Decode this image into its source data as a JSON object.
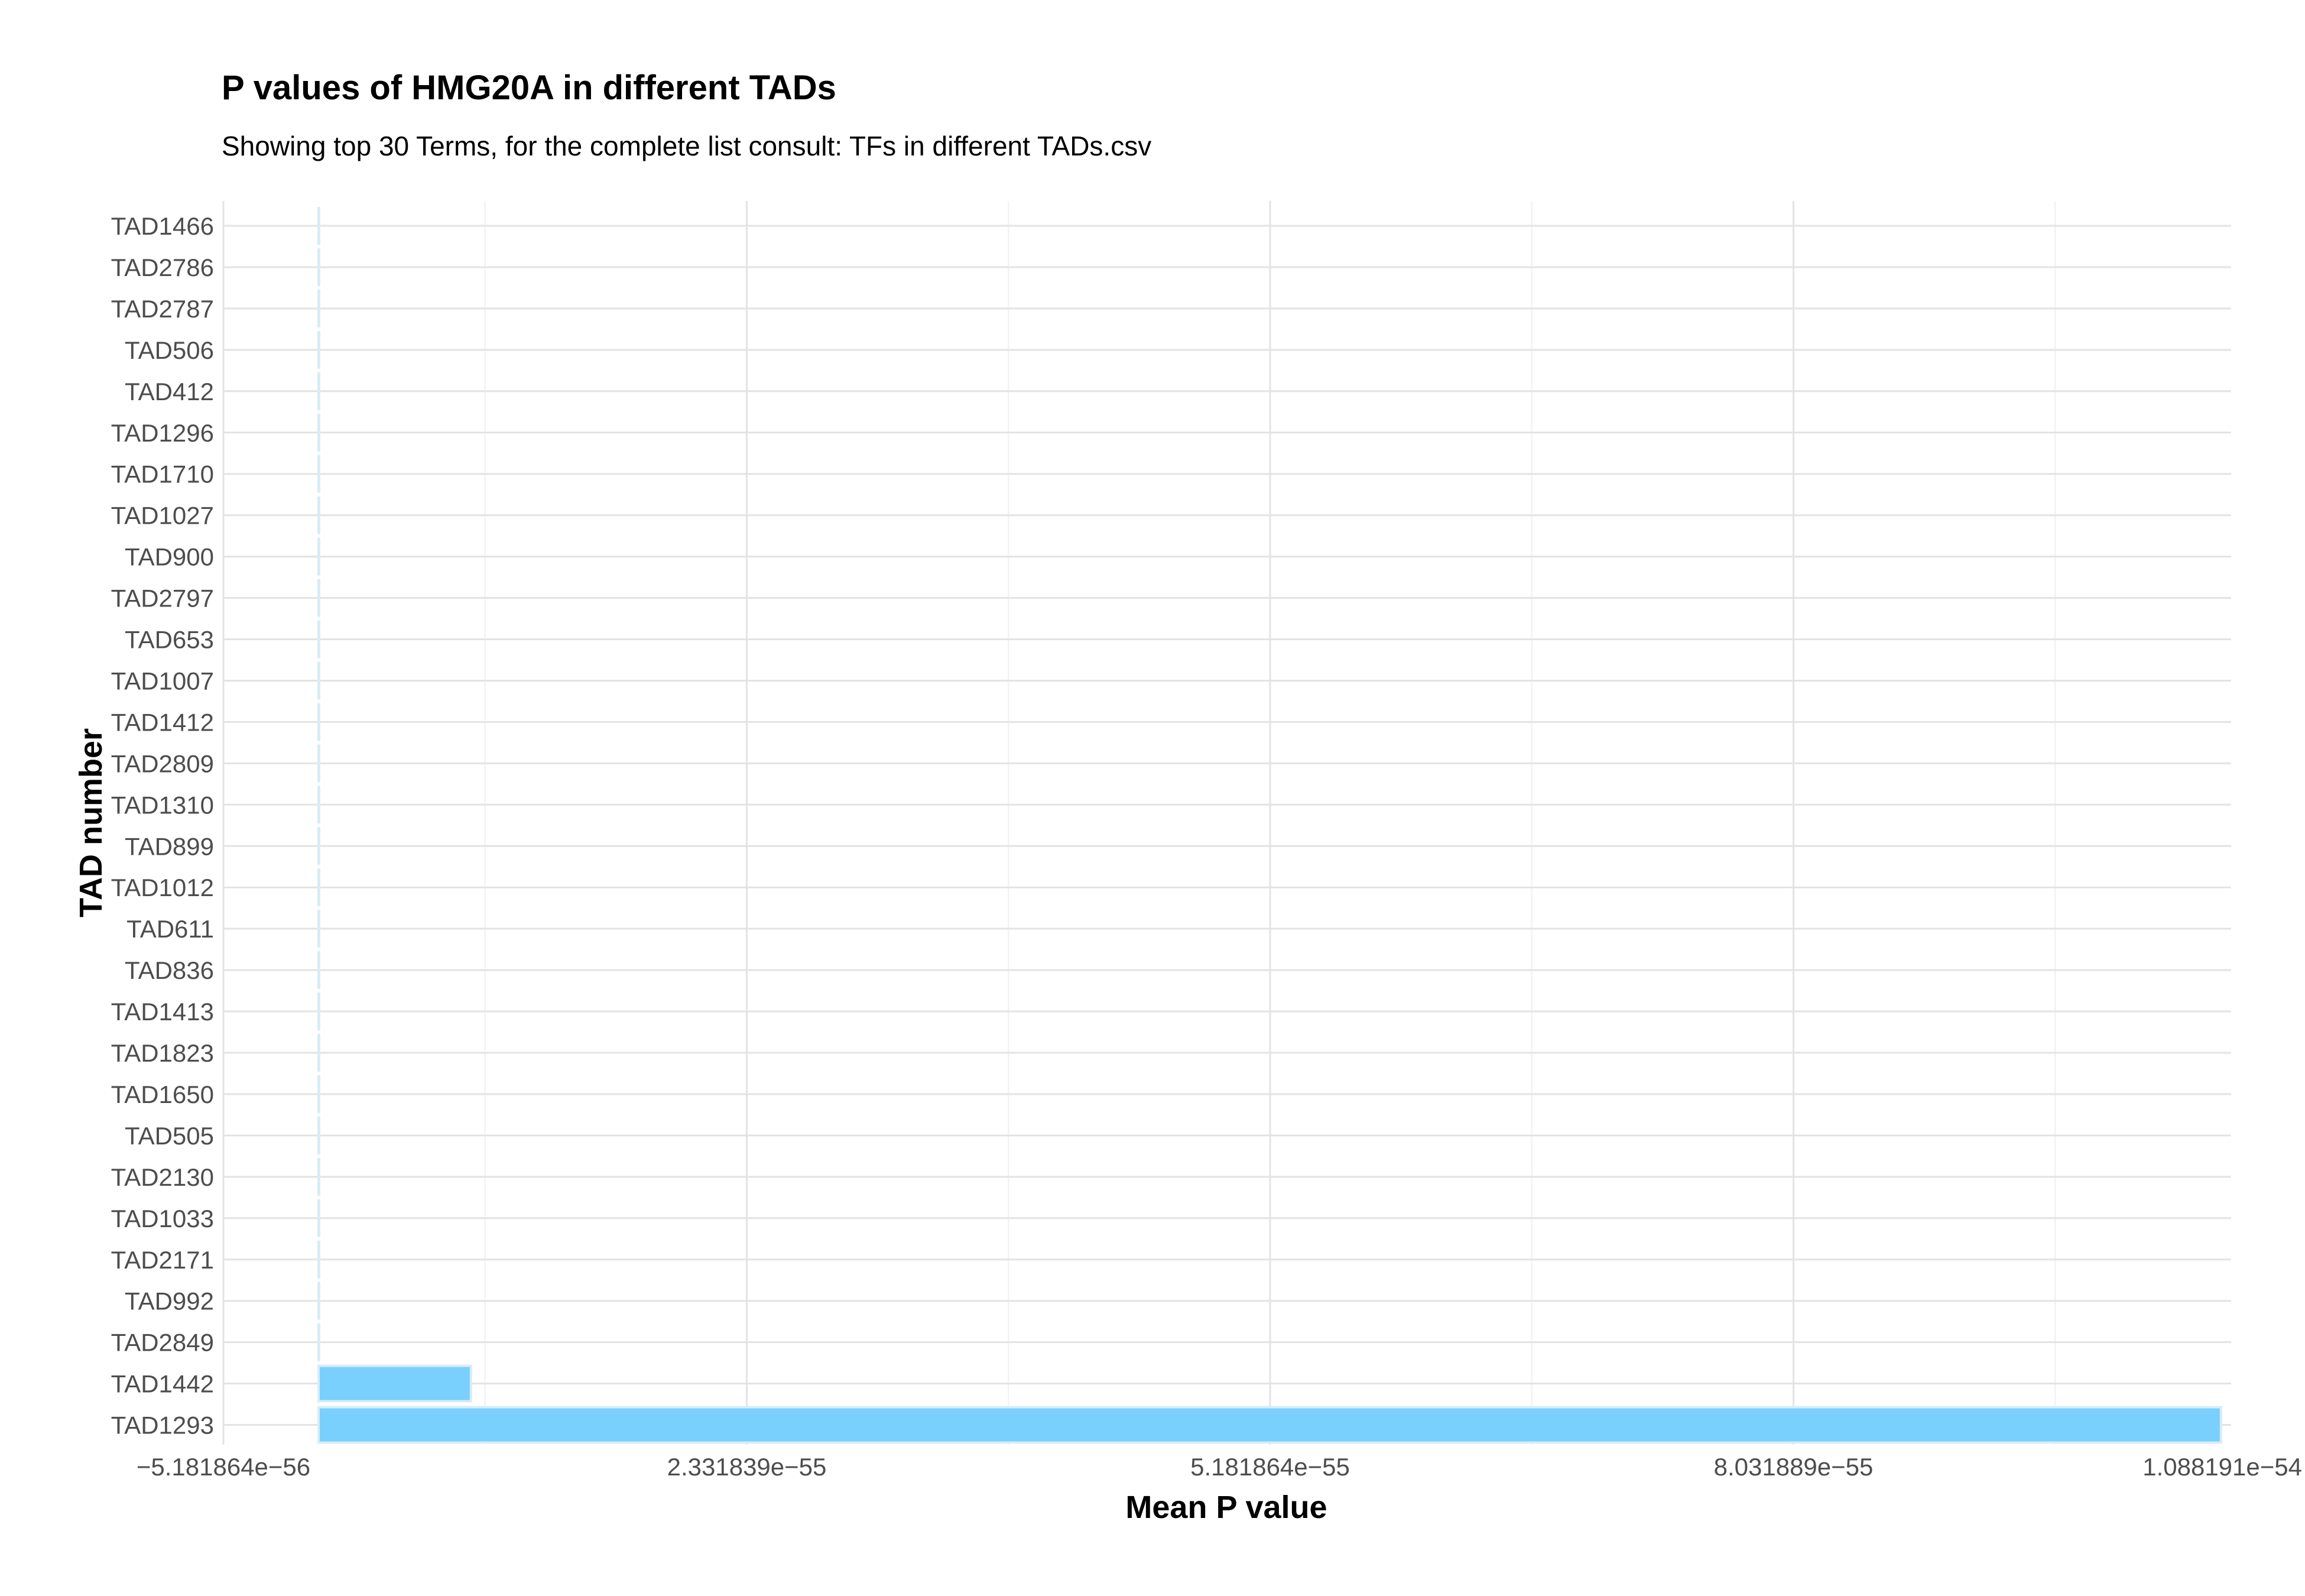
{
  "chart_data": {
    "type": "bar",
    "orientation": "horizontal",
    "title": "P values of HMG20A in different TADs",
    "subtitle": "Showing top 30 Terms, for the complete list consult: TFs in different TADs.csv",
    "xlabel": "Mean P value",
    "ylabel": "TAD number",
    "xlim": [
      -5.181864e-56,
      1.088191e-54
    ],
    "x_tick_values": [
      -5.181864e-56,
      2.331839e-55,
      5.181864e-55,
      8.031889e-55,
      1.088191e-54
    ],
    "x_tick_labels": [
      "−5.181864e−56",
      "2.331839e−55",
      "5.181864e−55",
      "8.031889e−55",
      "1.088191e−54"
    ],
    "categories": [
      "TAD1466",
      "TAD2786",
      "TAD2787",
      "TAD506",
      "TAD412",
      "TAD1296",
      "TAD1710",
      "TAD1027",
      "TAD900",
      "TAD2797",
      "TAD653",
      "TAD1007",
      "TAD1412",
      "TAD2809",
      "TAD1310",
      "TAD899",
      "TAD1012",
      "TAD611",
      "TAD836",
      "TAD1413",
      "TAD1823",
      "TAD1650",
      "TAD505",
      "TAD2130",
      "TAD1033",
      "TAD2171",
      "TAD992",
      "TAD2849",
      "TAD1442",
      "TAD1293"
    ],
    "values": [
      1e-60,
      1e-60,
      1e-60,
      1e-60,
      1e-60,
      1e-60,
      1e-60,
      1e-60,
      1e-60,
      1e-60,
      1e-60,
      1e-60,
      1e-60,
      1e-60,
      1e-60,
      1e-60,
      1e-60,
      1e-60,
      1e-60,
      1e-60,
      1e-60,
      1e-60,
      1e-60,
      1e-60,
      1e-60,
      1e-60,
      1e-60,
      1e-60,
      8.3e-56,
      1.036e-54
    ],
    "bar_color": "#79d0fc",
    "bar_outline_color": "#d9ecf7",
    "grid": true,
    "legend": "none"
  }
}
